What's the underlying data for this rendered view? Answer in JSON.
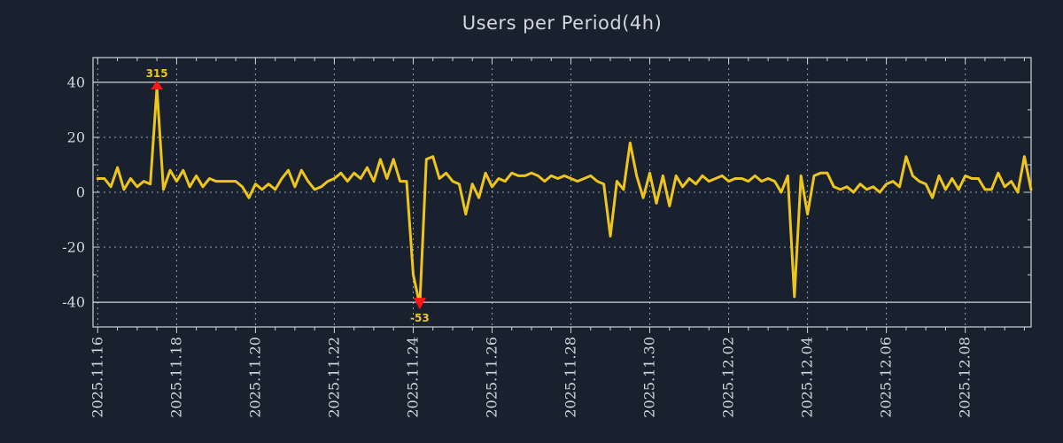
{
  "colors": {
    "background": "#19212e",
    "line": "#eec51c",
    "grid": "#97a2b0",
    "frame": "#cdd4dc",
    "text": "#d2d8de",
    "marker": "#ff1414",
    "annotation": "#eec51c"
  },
  "chart_data": {
    "type": "line",
    "title": "Users per Period(4h)",
    "xlabel": "",
    "ylabel": "",
    "period_hours": 4,
    "grid": true,
    "legend_position": "none",
    "ylim": [
      -49,
      49
    ],
    "xlim_days": [
      -0.12,
      23.67
    ],
    "y_ticks": [
      40,
      20,
      0,
      -20,
      -40
    ],
    "y_tick_labels": [
      "40",
      "20",
      "0",
      "-20",
      "-40"
    ],
    "y_grid_dashed": [
      20,
      0,
      -20
    ],
    "y_solid_lines": [
      40,
      -40
    ],
    "x_tick_days": [
      0,
      2,
      4,
      6,
      8,
      10,
      12,
      14,
      16,
      18,
      20,
      22
    ],
    "x_tick_labels": [
      "2025.11.16",
      "2025.11.18",
      "2025.11.20",
      "2025.11.22",
      "2025.11.24",
      "2025.11.26",
      "2025.11.28",
      "2025.11.30",
      "2025.12.02",
      "2025.12.04",
      "2025.12.06",
      "2025.12.08"
    ],
    "clip_max": 38,
    "clip_min": -41,
    "series": [
      {
        "name": "users",
        "values": [
          5,
          5,
          2,
          9,
          1,
          5,
          2,
          4,
          3,
          315,
          1,
          8,
          4,
          8,
          2,
          6,
          2,
          5,
          4,
          4,
          4,
          4,
          2,
          -2,
          3,
          1,
          3,
          1,
          5,
          8,
          2,
          8,
          4,
          1,
          2,
          4,
          5,
          7,
          4,
          7,
          5,
          9,
          4,
          12,
          5,
          12,
          4,
          4,
          -30,
          -53,
          12,
          13,
          5,
          7,
          4,
          3,
          -8,
          3,
          -2,
          7,
          2,
          5,
          4,
          7,
          6,
          6,
          7,
          6,
          4,
          6,
          5,
          6,
          5,
          4,
          5,
          6,
          4,
          3,
          -16,
          4,
          1,
          18,
          6,
          -2,
          7,
          -4,
          6,
          -5,
          6,
          2,
          5,
          3,
          6,
          4,
          5,
          6,
          4,
          5,
          5,
          4,
          6,
          4,
          5,
          4,
          0,
          6,
          -38,
          6,
          -8,
          6,
          7,
          7,
          2,
          1,
          2,
          0,
          3,
          1,
          2,
          0,
          3,
          4,
          2,
          13,
          6,
          4,
          3,
          -2,
          6,
          1,
          5,
          1,
          6,
          5,
          5,
          1,
          1,
          7,
          2,
          4,
          0,
          13,
          1
        ]
      }
    ],
    "annotations": [
      {
        "label": "315",
        "index": 9,
        "marker": "triangle-up",
        "at_y": 40
      },
      {
        "label": "-53",
        "index": 49,
        "marker": "triangle-down",
        "at_y": -40
      }
    ]
  }
}
